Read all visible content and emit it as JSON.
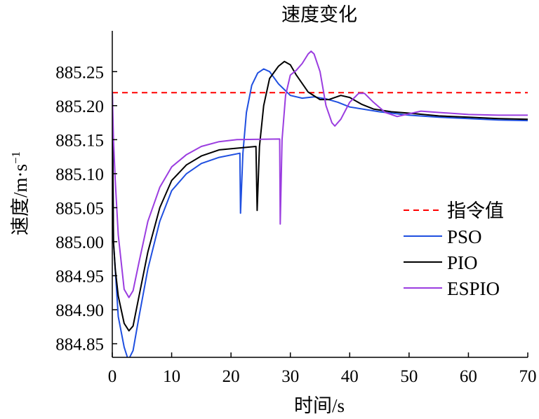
{
  "chart_data": {
    "type": "line",
    "title": "速度变化",
    "xlabel": "时间/s",
    "ylabel_main": "速度/m·s",
    "ylabel_sup": "−1",
    "xlim": [
      0,
      70
    ],
    "ylim": [
      884.83,
      885.31
    ],
    "xticks": [
      0,
      10,
      20,
      30,
      40,
      50,
      60,
      70
    ],
    "xtick_labels": [
      "0",
      "10",
      "20",
      "30",
      "40",
      "50",
      "60",
      "70"
    ],
    "yticks": [
      884.85,
      884.9,
      884.95,
      885.0,
      885.05,
      885.1,
      885.15,
      885.2,
      885.25
    ],
    "ytick_labels": [
      "884.85",
      "884.90",
      "884.95",
      "885.00",
      "885.05",
      "885.10",
      "885.15",
      "885.20",
      "885.25"
    ],
    "legend_position": "right",
    "series": [
      {
        "name": "指令值",
        "color": "#ff0000",
        "dash": true,
        "points": [
          [
            0,
            885.219
          ],
          [
            70,
            885.219
          ]
        ]
      },
      {
        "name": "PSO",
        "color": "#1f4fe0",
        "dash": false,
        "points": [
          [
            0,
            885.22
          ],
          [
            0.2,
            885.0
          ],
          [
            0.5,
            884.96
          ],
          [
            1,
            884.89
          ],
          [
            2,
            884.845
          ],
          [
            2.7,
            884.826
          ],
          [
            3.5,
            884.84
          ],
          [
            4.5,
            884.89
          ],
          [
            6,
            884.96
          ],
          [
            8,
            885.03
          ],
          [
            10,
            885.075
          ],
          [
            12.5,
            885.1
          ],
          [
            15,
            885.115
          ],
          [
            18,
            885.124
          ],
          [
            21.5,
            885.13
          ],
          [
            21.6,
            885.042
          ],
          [
            22,
            885.13
          ],
          [
            22.6,
            885.19
          ],
          [
            23.5,
            885.23
          ],
          [
            24.5,
            885.248
          ],
          [
            25.5,
            885.254
          ],
          [
            26.5,
            885.25
          ],
          [
            28,
            885.232
          ],
          [
            30,
            885.215
          ],
          [
            32,
            885.211
          ],
          [
            34,
            885.213
          ],
          [
            36,
            885.21
          ],
          [
            38,
            885.205
          ],
          [
            40,
            885.198
          ],
          [
            45,
            885.191
          ],
          [
            50,
            885.186
          ],
          [
            55,
            885.183
          ],
          [
            60,
            885.181
          ],
          [
            65,
            885.179
          ],
          [
            70,
            885.178
          ]
        ]
      },
      {
        "name": "PIO",
        "color": "#000000",
        "dash": false,
        "points": [
          [
            0,
            885.22
          ],
          [
            0.2,
            885.0
          ],
          [
            0.5,
            884.96
          ],
          [
            1,
            884.92
          ],
          [
            2,
            884.88
          ],
          [
            2.8,
            884.869
          ],
          [
            3.5,
            884.876
          ],
          [
            4.5,
            884.92
          ],
          [
            6,
            884.985
          ],
          [
            8,
            885.05
          ],
          [
            10,
            885.09
          ],
          [
            12.5,
            885.113
          ],
          [
            15,
            885.126
          ],
          [
            18,
            885.135
          ],
          [
            24.2,
            885.14
          ],
          [
            24.4,
            885.046
          ],
          [
            24.8,
            885.14
          ],
          [
            25.5,
            885.2
          ],
          [
            26.5,
            885.24
          ],
          [
            28,
            885.258
          ],
          [
            29,
            885.265
          ],
          [
            30,
            885.26
          ],
          [
            31,
            885.245
          ],
          [
            33,
            885.22
          ],
          [
            35,
            885.209
          ],
          [
            36.5,
            885.209
          ],
          [
            38.5,
            885.215
          ],
          [
            40,
            885.212
          ],
          [
            42,
            885.202
          ],
          [
            44,
            885.195
          ],
          [
            47,
            885.191
          ],
          [
            50,
            885.189
          ],
          [
            55,
            885.185
          ],
          [
            60,
            885.183
          ],
          [
            65,
            885.181
          ],
          [
            70,
            885.18
          ]
        ]
      },
      {
        "name": "ESPIO",
        "color": "#9b3de0",
        "dash": false,
        "points": [
          [
            0,
            885.22
          ],
          [
            0.2,
            885.15
          ],
          [
            0.5,
            885.09
          ],
          [
            1,
            885.01
          ],
          [
            2,
            884.93
          ],
          [
            2.8,
            884.918
          ],
          [
            3.5,
            884.928
          ],
          [
            4.5,
            884.97
          ],
          [
            6,
            885.03
          ],
          [
            8,
            885.08
          ],
          [
            10,
            885.11
          ],
          [
            12.5,
            885.128
          ],
          [
            15,
            885.14
          ],
          [
            18,
            885.147
          ],
          [
            21,
            885.15
          ],
          [
            28.2,
            885.151
          ],
          [
            28.3,
            885.026
          ],
          [
            28.6,
            885.15
          ],
          [
            29.2,
            885.215
          ],
          [
            30,
            885.245
          ],
          [
            31,
            885.252
          ],
          [
            32,
            885.262
          ],
          [
            33,
            885.276
          ],
          [
            33.5,
            885.28
          ],
          [
            34,
            885.276
          ],
          [
            35,
            885.25
          ],
          [
            36,
            885.2
          ],
          [
            37,
            885.175
          ],
          [
            37.5,
            885.17
          ],
          [
            38.5,
            885.18
          ],
          [
            40,
            885.205
          ],
          [
            41.5,
            885.218
          ],
          [
            42.5,
            885.218
          ],
          [
            44,
            885.205
          ],
          [
            46,
            885.19
          ],
          [
            48,
            885.184
          ],
          [
            50,
            885.188
          ],
          [
            52,
            885.192
          ],
          [
            55,
            885.19
          ],
          [
            60,
            885.187
          ],
          [
            65,
            885.186
          ],
          [
            70,
            885.186
          ]
        ]
      }
    ]
  }
}
